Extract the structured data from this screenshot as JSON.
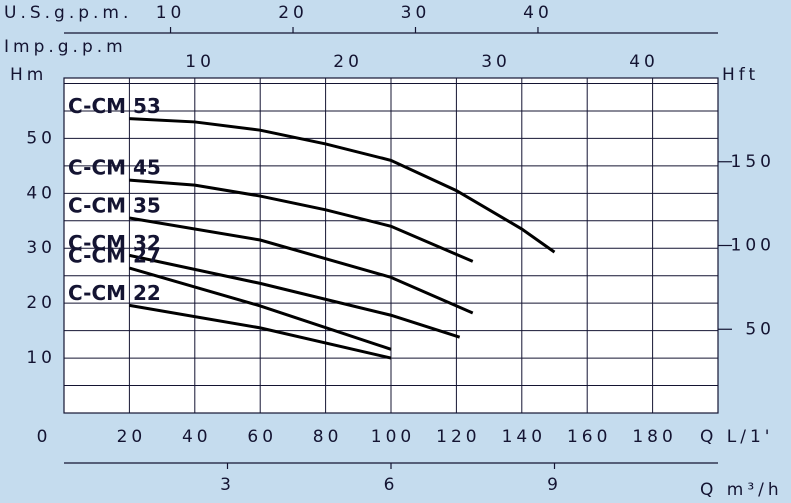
{
  "chart_data": {
    "type": "line",
    "xlabel": "Q L/1'",
    "xlim": [
      0,
      200
    ],
    "xticks": [
      0,
      20,
      40,
      60,
      80,
      100,
      120,
      140,
      160,
      180
    ],
    "ylabel": "Hm",
    "ylim": [
      0,
      61
    ],
    "yticks": [
      10,
      20,
      30,
      40,
      50
    ],
    "ygrid": [
      5,
      10,
      15,
      20,
      25,
      30,
      35,
      40,
      45,
      50,
      55,
      60
    ],
    "y2label": "Hft",
    "y2lim": [
      0,
      200
    ],
    "y2ticks": [
      50,
      100,
      150
    ],
    "extra_axes": [
      {
        "label": "U.S.g.p.m.",
        "lim": [
          1.3,
          54.7
        ],
        "ticks": [
          10,
          20,
          30,
          40
        ]
      },
      {
        "label": "Imp.g.p.m",
        "lim": [
          0.8,
          45
        ],
        "ticks": [
          10,
          20,
          30,
          40
        ]
      },
      {
        "label": "Q m³/h",
        "lim": [
          0,
          12
        ],
        "ticks": [
          3,
          6,
          9
        ]
      }
    ],
    "series": [
      {
        "name": "C-CM 53",
        "color": "#000000",
        "x": [
          20,
          40,
          60,
          80,
          100,
          120,
          140,
          150
        ],
        "values": [
          53.6,
          53,
          51.5,
          49,
          46,
          40.5,
          33.5,
          29.3
        ]
      },
      {
        "name": "C-CM 45",
        "color": "#000000",
        "x": [
          20,
          40,
          60,
          80,
          100,
          125
        ],
        "values": [
          42.4,
          41.5,
          39.5,
          37,
          34,
          27.6
        ]
      },
      {
        "name": "C-CM 35",
        "color": "#000000",
        "x": [
          20,
          60,
          100,
          125
        ],
        "values": [
          35.5,
          31.5,
          24.7,
          18.2
        ]
      },
      {
        "name": "C-CM 32",
        "color": "#000000",
        "x": [
          20,
          60,
          100,
          121
        ],
        "values": [
          28.7,
          23.6,
          17.8,
          13.8
        ]
      },
      {
        "name": "C-CM 27",
        "color": "#000000",
        "x": [
          20,
          60,
          100
        ],
        "values": [
          26.4,
          19.5,
          11.6
        ]
      },
      {
        "name": "C-CM 22",
        "color": "#000000",
        "x": [
          20,
          60,
          100
        ],
        "values": [
          19.6,
          15.5,
          10
        ]
      }
    ]
  }
}
